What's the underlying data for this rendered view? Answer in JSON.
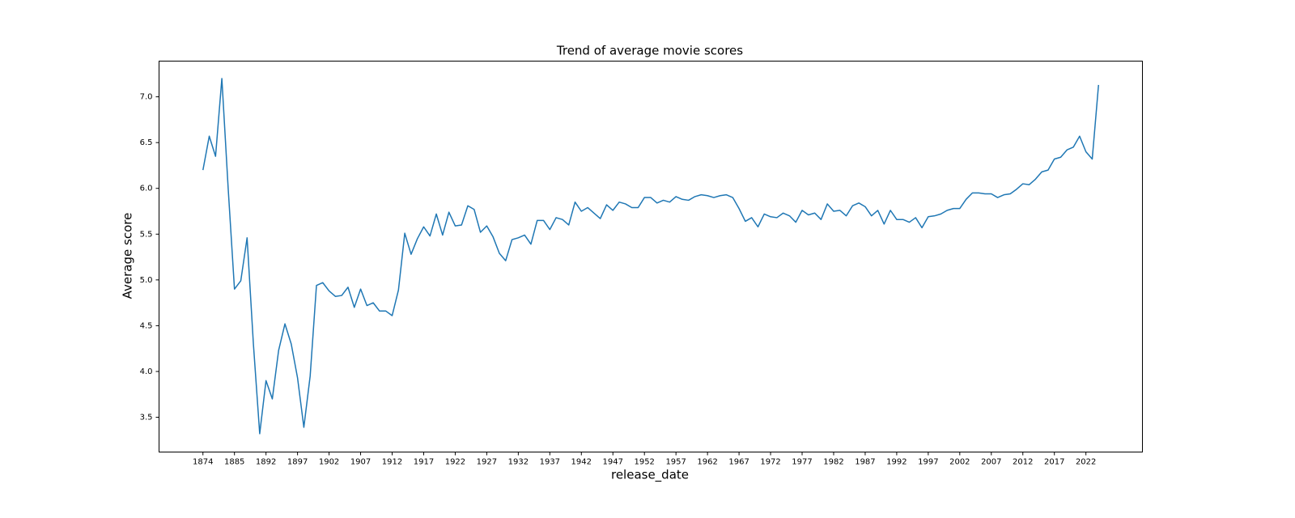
{
  "chart_data": {
    "type": "line",
    "title": "Trend of average movie scores",
    "x_label": "release_date",
    "y_label": "Average score",
    "categories": [
      "1874",
      null,
      null,
      null,
      null,
      "1885",
      null,
      null,
      null,
      null,
      "1892",
      null,
      null,
      null,
      null,
      "1897",
      null,
      null,
      null,
      null,
      "1902",
      null,
      null,
      null,
      null,
      "1907",
      null,
      null,
      null,
      null,
      "1912",
      null,
      null,
      null,
      null,
      "1917",
      null,
      null,
      null,
      null,
      "1922",
      null,
      null,
      null,
      null,
      "1927",
      null,
      null,
      null,
      null,
      "1932",
      null,
      null,
      null,
      null,
      "1937",
      null,
      null,
      null,
      null,
      "1942",
      null,
      null,
      null,
      null,
      "1947",
      null,
      null,
      null,
      null,
      "1952",
      null,
      null,
      null,
      null,
      "1957",
      null,
      null,
      null,
      null,
      "1962",
      null,
      null,
      null,
      null,
      "1967",
      null,
      null,
      null,
      null,
      "1972",
      null,
      null,
      null,
      null,
      "1977",
      null,
      null,
      null,
      null,
      "1982",
      null,
      null,
      null,
      null,
      "1987",
      null,
      null,
      null,
      null,
      "1992",
      null,
      null,
      null,
      null,
      "1997",
      null,
      null,
      null,
      null,
      "2002",
      null,
      null,
      null,
      null,
      "2007",
      null,
      null,
      null,
      null,
      "2012",
      null,
      null,
      null,
      null,
      "2017",
      null,
      null,
      null,
      null,
      "2022",
      null,
      null
    ],
    "values": [
      6.2,
      6.57,
      6.35,
      7.2,
      6.0,
      4.9,
      4.99,
      5.46,
      4.3,
      3.32,
      3.9,
      3.7,
      4.23,
      4.52,
      4.3,
      3.93,
      3.39,
      3.95,
      4.94,
      4.97,
      4.88,
      4.82,
      4.83,
      4.92,
      4.7,
      4.9,
      4.72,
      4.75,
      4.66,
      4.66,
      4.61,
      4.89,
      5.51,
      5.28,
      5.45,
      5.58,
      5.48,
      5.72,
      5.49,
      5.74,
      5.59,
      5.6,
      5.81,
      5.77,
      5.52,
      5.59,
      5.47,
      5.29,
      5.21,
      5.44,
      5.46,
      5.49,
      5.39,
      5.65,
      5.65,
      5.55,
      5.68,
      5.66,
      5.6,
      5.85,
      5.75,
      5.79,
      5.73,
      5.67,
      5.82,
      5.76,
      5.85,
      5.83,
      5.79,
      5.79,
      5.9,
      5.9,
      5.84,
      5.87,
      5.85,
      5.91,
      5.88,
      5.87,
      5.91,
      5.93,
      5.92,
      5.9,
      5.92,
      5.93,
      5.9,
      5.78,
      5.64,
      5.68,
      5.58,
      5.72,
      5.69,
      5.68,
      5.73,
      5.7,
      5.63,
      5.76,
      5.71,
      5.73,
      5.66,
      5.83,
      5.75,
      5.76,
      5.7,
      5.81,
      5.84,
      5.8,
      5.7,
      5.76,
      5.61,
      5.76,
      5.66,
      5.66,
      5.63,
      5.68,
      5.57,
      5.69,
      5.7,
      5.72,
      5.76,
      5.78,
      5.78,
      5.88,
      5.95,
      5.95,
      5.94,
      5.94,
      5.9,
      5.93,
      5.94,
      5.99,
      6.05,
      6.04,
      6.1,
      6.18,
      6.2,
      6.32,
      6.34,
      6.42,
      6.45,
      6.57,
      6.4,
      6.32,
      7.13
    ],
    "color": "#1f77b4",
    "ylim": [
      3.12,
      7.39
    ],
    "yticks": [
      3.5,
      {
        "value": 4.0,
        "label": "4.0"
      },
      4.5,
      {
        "value": 5.0,
        "label": "5.0"
      },
      5.5,
      {
        "value": 6.0,
        "label": "6.0"
      },
      6.5,
      {
        "value": 7.0,
        "label": "7.0"
      }
    ],
    "grid": false
  }
}
